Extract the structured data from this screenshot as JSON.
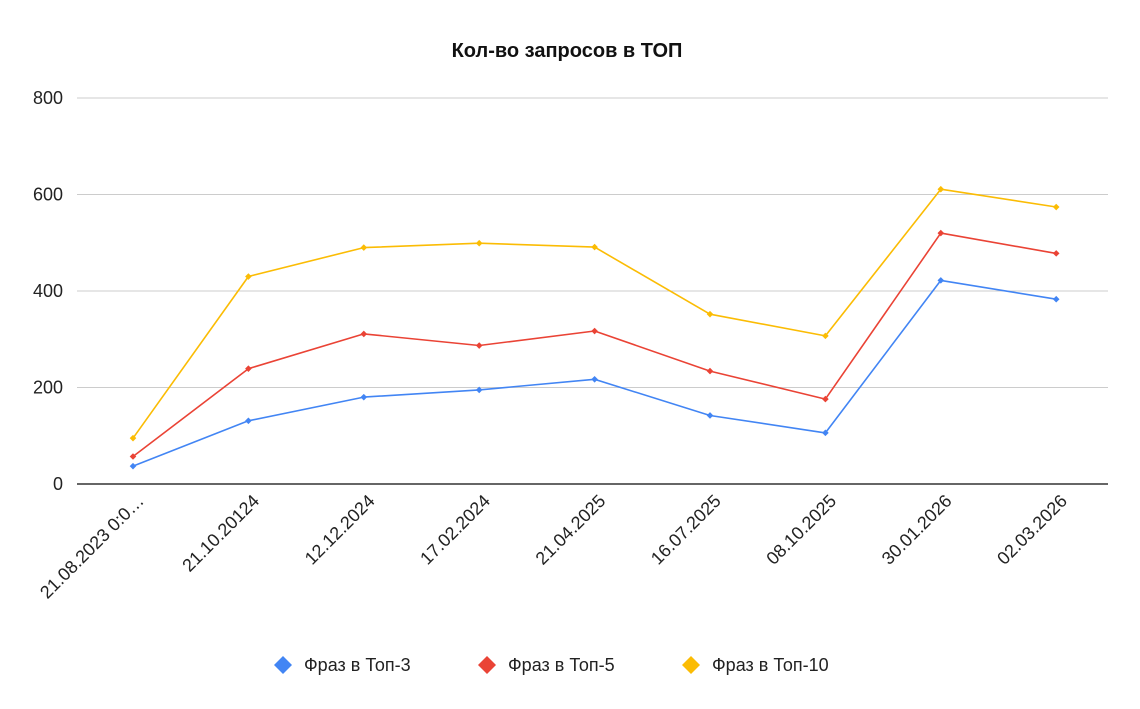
{
  "chart_data": {
    "type": "line",
    "title": "Кол-во запросов в ТОП",
    "xlabel": "",
    "ylabel": "",
    "ylim": [
      0,
      800
    ],
    "yticks": [
      "0",
      "200",
      "400",
      "600",
      "800"
    ],
    "categories": [
      "21.08.2023 0:0…",
      "21.10.20124",
      "12.12.2024",
      "17.02.2024",
      "21.04.2025",
      "16.07.2025",
      "08.10.2025",
      "30.01.2026",
      "02.03.2026"
    ],
    "series": [
      {
        "name": "Фраз в Топ-3",
        "color": "#4285f4",
        "values": [
          37,
          131,
          180,
          195,
          217,
          142,
          106,
          422,
          383
        ]
      },
      {
        "name": "Фраз в Топ-5",
        "color": "#ea4335",
        "values": [
          57,
          239,
          311,
          287,
          317,
          234,
          176,
          520,
          478
        ]
      },
      {
        "name": "Фраз в Топ-10",
        "color": "#fbbc04",
        "values": [
          95,
          430,
          490,
          499,
          491,
          352,
          307,
          611,
          574
        ]
      }
    ],
    "grid": true,
    "legend_position": "bottom"
  }
}
